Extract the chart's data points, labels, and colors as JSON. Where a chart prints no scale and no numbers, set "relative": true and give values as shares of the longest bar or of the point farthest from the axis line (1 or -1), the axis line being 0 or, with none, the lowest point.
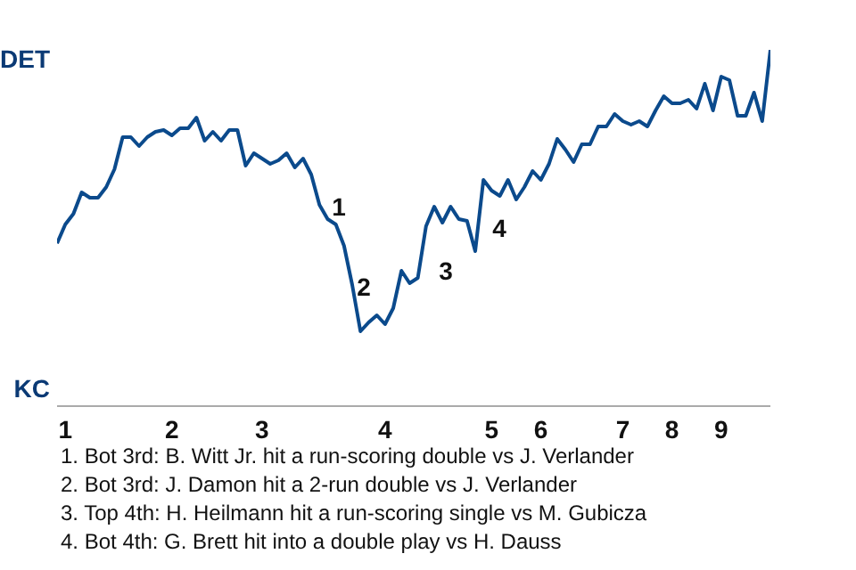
{
  "chart_data": {
    "type": "line",
    "relative": true,
    "categories": [
      null,
      "1",
      null,
      null,
      null,
      null,
      null,
      null,
      null,
      null,
      null,
      null,
      null,
      null,
      "2",
      null,
      null,
      null,
      null,
      null,
      null,
      null,
      null,
      null,
      null,
      "3",
      null,
      null,
      null,
      null,
      null,
      null,
      null,
      null,
      null,
      null,
      null,
      null,
      null,
      null,
      "4",
      null,
      null,
      null,
      null,
      null,
      null,
      null,
      null,
      null,
      null,
      null,
      null,
      "5",
      null,
      null,
      null,
      null,
      null,
      "6",
      null,
      null,
      null,
      null,
      null,
      null,
      null,
      null,
      null,
      "7",
      null,
      null,
      null,
      null,
      null,
      "8",
      null,
      null,
      null,
      null,
      null,
      "9",
      null,
      null,
      null,
      null,
      null,
      null
    ],
    "series": [
      {
        "color": "#0b4a8c",
        "values": [
          0.457,
          0.51,
          0.54,
          0.6,
          0.585,
          0.585,
          0.615,
          0.665,
          0.755,
          0.755,
          0.73,
          0.755,
          0.77,
          0.775,
          0.76,
          0.78,
          0.78,
          0.81,
          0.745,
          0.77,
          0.745,
          0.775,
          0.775,
          0.675,
          0.71,
          0.695,
          0.68,
          0.69,
          0.71,
          0.67,
          0.695,
          0.65,
          0.565,
          0.525,
          0.51,
          0.45,
          0.34,
          0.21,
          0.235,
          0.255,
          0.23,
          0.275,
          0.38,
          0.345,
          0.36,
          0.505,
          0.56,
          0.515,
          0.56,
          0.525,
          0.52,
          0.435,
          0.635,
          0.605,
          0.59,
          0.635,
          0.58,
          0.615,
          0.66,
          0.635,
          0.68,
          0.75,
          0.72,
          0.685,
          0.735,
          0.735,
          0.785,
          0.785,
          0.82,
          0.8,
          0.79,
          0.8,
          0.785,
          0.83,
          0.87,
          0.85,
          0.85,
          0.86,
          0.835,
          0.905,
          0.83,
          0.925,
          0.915,
          0.815,
          0.815,
          0.88,
          0.8,
          1
        ]
      }
    ],
    "marker": "none",
    "line_style": "solid",
    "legend": false,
    "tick_labels": "x",
    "annotations": [
      "DET",
      "KC",
      "1",
      "2",
      "3",
      "4",
      "1. Bot 3rd: B. Witt Jr. hit a run-scoring double vs J. Verlander",
      "2. Bot 3rd: J. Damon hit a 2-run double vs J. Verlander",
      "3. Top 4th: H. Heilmann hit a run-scoring single vs M. Gubicza",
      "4. Bot 4th: G. Brett hit into a double play vs H. Dauss"
    ]
  }
}
